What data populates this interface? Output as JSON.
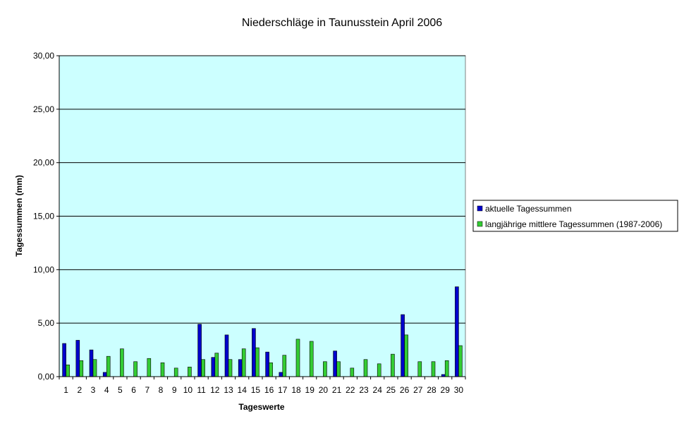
{
  "chart_data": {
    "type": "bar",
    "title": "Niederschläge in Taunusstein  April  2006",
    "xlabel": "Tageswerte",
    "ylabel": "Tagessummen (mm)",
    "ylim": [
      0,
      30
    ],
    "yticks": [
      "0,00",
      "5,00",
      "10,00",
      "15,00",
      "20,00",
      "25,00",
      "30,00"
    ],
    "grid": true,
    "legend_position": "right",
    "plot_background": "#ccffff",
    "categories": [
      "1",
      "2",
      "3",
      "4",
      "5",
      "6",
      "7",
      "8",
      "9",
      "10",
      "11",
      "12",
      "13",
      "14",
      "15",
      "16",
      "17",
      "18",
      "19",
      "20",
      "21",
      "22",
      "23",
      "24",
      "25",
      "26",
      "27",
      "28",
      "29",
      "30"
    ],
    "series": [
      {
        "name": "aktuelle Tagessummen",
        "color": "#0000cc",
        "values": [
          3.1,
          3.4,
          2.5,
          0.4,
          0,
          0,
          0,
          0,
          0,
          0,
          4.9,
          1.8,
          3.9,
          1.6,
          4.5,
          2.3,
          0.4,
          0,
          0,
          0,
          2.4,
          0,
          0,
          0,
          0,
          5.8,
          0,
          0,
          0.2,
          8.4
        ]
      },
      {
        "name": "langjährige mittlere Tagessummen (1987-2006)",
        "color": "#33cc33",
        "values": [
          1.1,
          1.5,
          1.6,
          1.9,
          2.6,
          1.4,
          1.7,
          1.3,
          0.8,
          0.9,
          1.6,
          2.2,
          1.6,
          2.6,
          2.7,
          1.3,
          2.0,
          3.5,
          3.3,
          1.4,
          1.4,
          0.8,
          1.6,
          1.2,
          2.1,
          3.9,
          1.4,
          1.4,
          1.5,
          2.9
        ]
      }
    ]
  }
}
